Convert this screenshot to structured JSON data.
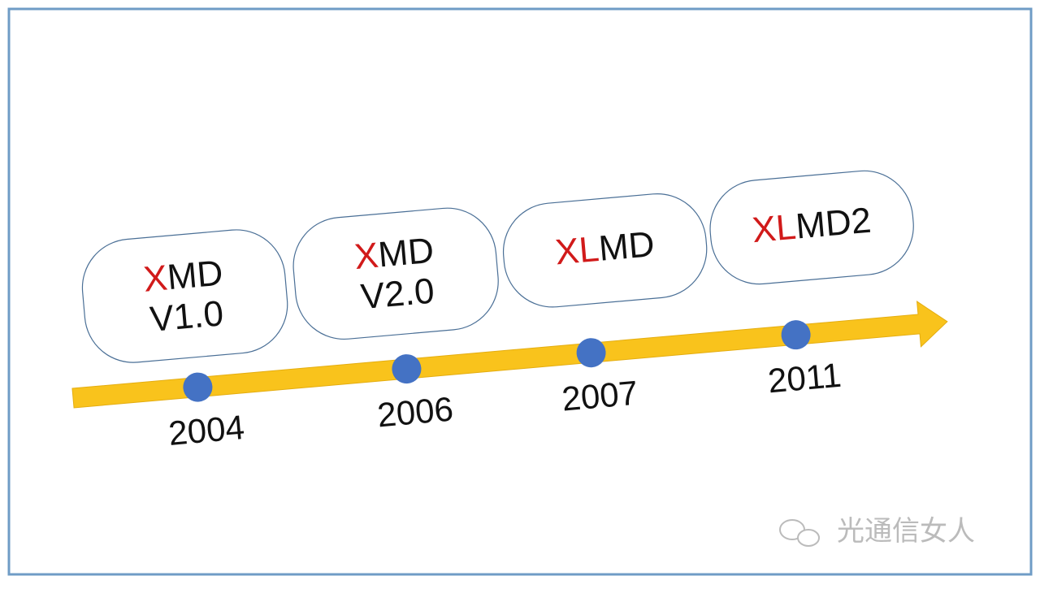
{
  "nodes": [
    {
      "highlight": "X",
      "rest": "MD",
      "version": "V1.0",
      "year": "2004"
    },
    {
      "highlight": "X",
      "rest": "MD",
      "version": "V2.0",
      "year": "2006"
    },
    {
      "highlight": "XL",
      "rest": "MD",
      "year": "2007"
    },
    {
      "highlight": "XL",
      "rest": "MD2",
      "year": "2011"
    }
  ],
  "watermark": "光通信女人"
}
